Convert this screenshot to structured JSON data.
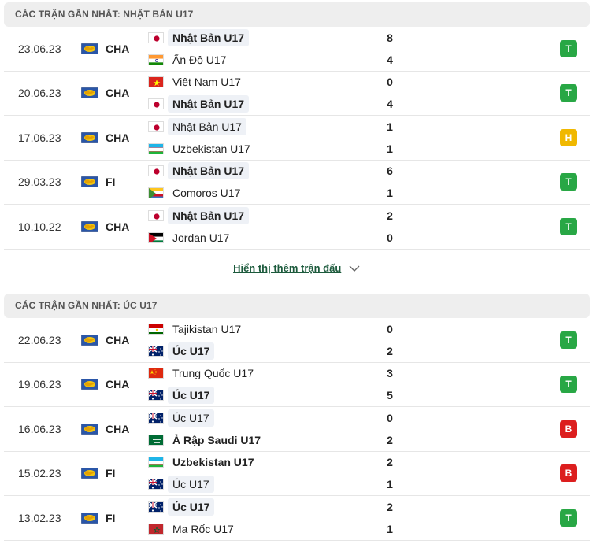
{
  "colors": {
    "win": "#28a745",
    "draw": "#f0b800",
    "loss": "#dc1e1e"
  },
  "sections": [
    {
      "title": "CÁC TRẬN GẦN NHẤT: NHẬT BẢN U17",
      "matches": [
        {
          "date": "23.06.23",
          "comp": "CHA",
          "home": {
            "name": "Nhật Bản U17",
            "flag": "japan",
            "score": "8",
            "bold": true,
            "hl": true
          },
          "away": {
            "name": "Ấn Độ U17",
            "flag": "india",
            "score": "4",
            "bold": false,
            "hl": false
          },
          "result": "T"
        },
        {
          "date": "20.06.23",
          "comp": "CHA",
          "home": {
            "name": "Việt Nam U17",
            "flag": "vietnam",
            "score": "0",
            "bold": false,
            "hl": false
          },
          "away": {
            "name": "Nhật Bản U17",
            "flag": "japan",
            "score": "4",
            "bold": true,
            "hl": true
          },
          "result": "T"
        },
        {
          "date": "17.06.23",
          "comp": "CHA",
          "home": {
            "name": "Nhật Bản U17",
            "flag": "japan",
            "score": "1",
            "bold": false,
            "hl": true
          },
          "away": {
            "name": "Uzbekistan U17",
            "flag": "uzbekistan",
            "score": "1",
            "bold": false,
            "hl": false
          },
          "result": "H"
        },
        {
          "date": "29.03.23",
          "comp": "FI",
          "home": {
            "name": "Nhật Bản U17",
            "flag": "japan",
            "score": "6",
            "bold": true,
            "hl": true
          },
          "away": {
            "name": "Comoros U17",
            "flag": "comoros",
            "score": "1",
            "bold": false,
            "hl": false
          },
          "result": "T"
        },
        {
          "date": "10.10.22",
          "comp": "CHA",
          "home": {
            "name": "Nhật Bản U17",
            "flag": "japan",
            "score": "2",
            "bold": true,
            "hl": true
          },
          "away": {
            "name": "Jordan U17",
            "flag": "jordan",
            "score": "0",
            "bold": false,
            "hl": false
          },
          "result": "T"
        }
      ]
    },
    {
      "title": "CÁC TRẬN GẦN NHẤT: ÚC U17",
      "matches": [
        {
          "date": "22.06.23",
          "comp": "CHA",
          "home": {
            "name": "Tajikistan U17",
            "flag": "tajikistan",
            "score": "0",
            "bold": false,
            "hl": false
          },
          "away": {
            "name": "Úc U17",
            "flag": "australia",
            "score": "2",
            "bold": true,
            "hl": true
          },
          "result": "T"
        },
        {
          "date": "19.06.23",
          "comp": "CHA",
          "home": {
            "name": "Trung Quốc U17",
            "flag": "china",
            "score": "3",
            "bold": false,
            "hl": false
          },
          "away": {
            "name": "Úc U17",
            "flag": "australia",
            "score": "5",
            "bold": true,
            "hl": true
          },
          "result": "T"
        },
        {
          "date": "16.06.23",
          "comp": "CHA",
          "home": {
            "name": "Úc U17",
            "flag": "australia",
            "score": "0",
            "bold": false,
            "hl": true
          },
          "away": {
            "name": "Ả Rập Saudi U17",
            "flag": "saudi",
            "score": "2",
            "bold": true,
            "hl": false
          },
          "result": "B"
        },
        {
          "date": "15.02.23",
          "comp": "FI",
          "home": {
            "name": "Uzbekistan U17",
            "flag": "uzbekistan",
            "score": "2",
            "bold": true,
            "hl": false
          },
          "away": {
            "name": "Úc U17",
            "flag": "australia",
            "score": "1",
            "bold": false,
            "hl": true
          },
          "result": "B"
        },
        {
          "date": "13.02.23",
          "comp": "FI",
          "home": {
            "name": "Úc U17",
            "flag": "australia",
            "score": "2",
            "bold": true,
            "hl": true
          },
          "away": {
            "name": "Ma Rốc U17",
            "flag": "morocco",
            "score": "1",
            "bold": false,
            "hl": false
          },
          "result": "T"
        }
      ]
    }
  ],
  "show_more": {
    "label": "Hiển thị thêm trận đấu",
    "icon": "chevron-down-icon"
  }
}
